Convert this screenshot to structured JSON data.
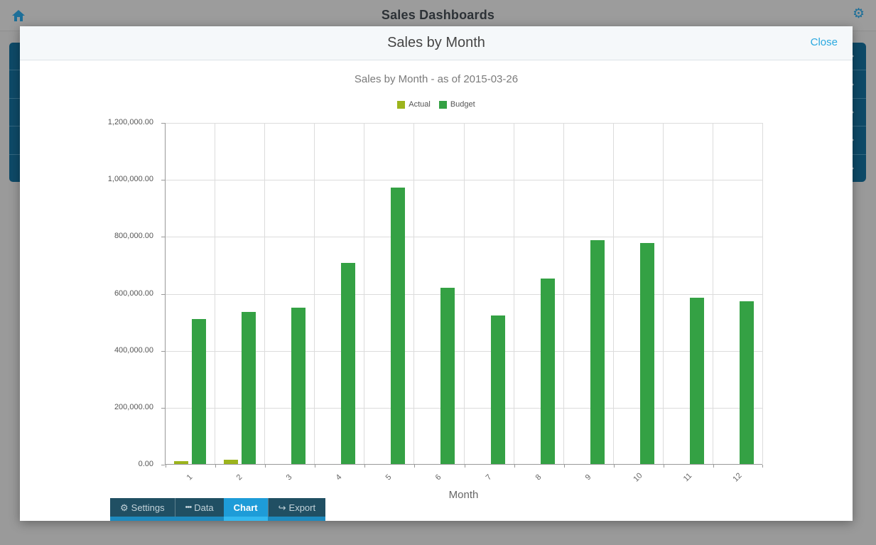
{
  "app_bar": {
    "title": "Sales Dashboards"
  },
  "background": {
    "list_row_count": 5
  },
  "modal": {
    "title": "Sales by Month",
    "close_label": "Close"
  },
  "chart_data": {
    "type": "bar",
    "title": "Sales by Month - as of 2015-03-26",
    "xlabel": "Month",
    "ylabel": "",
    "categories": [
      "1",
      "2",
      "3",
      "4",
      "5",
      "6",
      "7",
      "8",
      "9",
      "10",
      "11",
      "12"
    ],
    "series": [
      {
        "name": "Actual",
        "color": "#9cb41c",
        "values": [
          11000,
          16000,
          0,
          0,
          0,
          0,
          0,
          0,
          0,
          0,
          0,
          0
        ]
      },
      {
        "name": "Budget",
        "color": "#34a144",
        "values": [
          510000,
          533000,
          550000,
          707000,
          970000,
          619000,
          522000,
          650000,
          787000,
          777000,
          585000,
          572000
        ]
      }
    ],
    "ylim": [
      0,
      1200000
    ],
    "ytick_labels": [
      "0.00",
      "200,000.00",
      "400,000.00",
      "600,000.00",
      "800,000.00",
      "1,000,000.00",
      "1,200,000.00"
    ],
    "legend": {
      "position": "top",
      "entries": [
        "Actual",
        "Budget"
      ]
    },
    "grid": true
  },
  "tabs": [
    {
      "id": "settings",
      "label": "Settings",
      "icon": "gear-icon",
      "active": false
    },
    {
      "id": "data",
      "label": "Data",
      "icon": "dots-icon",
      "active": false
    },
    {
      "id": "chart",
      "label": "Chart",
      "icon": null,
      "active": true
    },
    {
      "id": "export",
      "label": "Export",
      "icon": "share-icon",
      "active": false
    }
  ],
  "icon_glyphs": {
    "gear-icon": "⚙",
    "dots-icon": "•••",
    "share-icon": "↪",
    "app-gear-icon": "⚙"
  },
  "colors": {
    "accent_blue": "#2aa9e0",
    "top_bar_icon_blue": "#1d6f99",
    "tab_bg": "#204f63",
    "tab_active_bg": "#1e9cd8",
    "tab_strip": "#1d8abe",
    "tab_strip_active": "#33b9f0",
    "background_row_teal": "#0e4a68",
    "series_actual": "#9cb41c",
    "series_budget": "#34a144"
  }
}
